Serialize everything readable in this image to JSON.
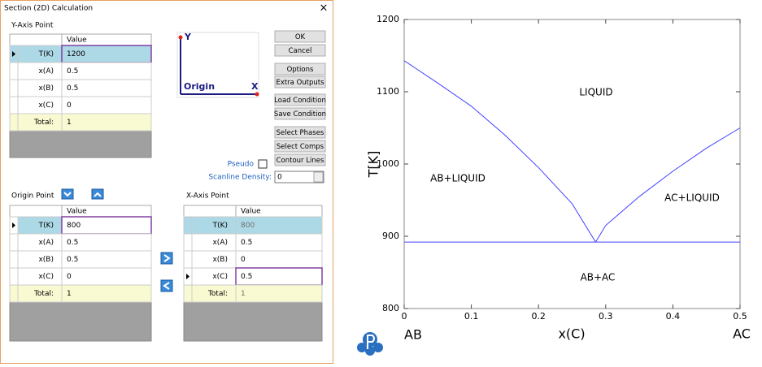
{
  "dialog": {
    "title": "Section (2D) Calculation",
    "close": "×",
    "y_axis_point": {
      "label": "Y-Axis Point",
      "header": "Value",
      "rows": [
        [
          "T(K)",
          "1200"
        ],
        [
          "x(A)",
          "0.5"
        ],
        [
          "x(B)",
          "0.5"
        ],
        [
          "x(C)",
          "0"
        ],
        [
          "Total:",
          "1"
        ]
      ]
    },
    "origin_point": {
      "label": "Origin Point",
      "header": "Value",
      "rows": [
        [
          "T(K)",
          "800"
        ],
        [
          "x(A)",
          "0.5"
        ],
        [
          "x(B)",
          "0.5"
        ],
        [
          "x(C)",
          "0"
        ],
        [
          "Total:",
          "1"
        ]
      ]
    },
    "x_axis_point": {
      "label": "X-Axis Point",
      "header": "Value",
      "rows": [
        [
          "T(K)",
          "800"
        ],
        [
          "x(A)",
          "0.5"
        ],
        [
          "x(B)",
          "0"
        ],
        [
          "x(C)",
          "0.5"
        ],
        [
          "Total:",
          "1"
        ]
      ]
    },
    "diagram": {
      "y": "Y",
      "origin": "Origin",
      "x": "X"
    },
    "buttons": [
      "OK",
      "Cancel",
      "Options",
      "Extra Outputs",
      "Load Condition",
      "Save Condition",
      "Select Phases",
      "Select Comps",
      "Contour Lines"
    ],
    "pseudo": "Pseudo",
    "scanline_label": "Scanline Density:",
    "scanline_value": "0"
  },
  "chart_data": {
    "type": "line",
    "xlabel": "x(C)",
    "ylabel": "T[K]",
    "xlim": [
      0,
      0.5
    ],
    "ylim": [
      800,
      1200
    ],
    "xticks": [
      0,
      0.1,
      0.2,
      0.3,
      0.4,
      0.5
    ],
    "yticks": [
      800,
      900,
      1000,
      1100,
      1200
    ],
    "series": [
      {
        "color": "#4040ff",
        "x": [
          0,
          0.05,
          0.1,
          0.15,
          0.2,
          0.25,
          0.285
        ],
        "values": [
          1143,
          1112,
          1080,
          1040,
          995,
          945,
          892
        ]
      },
      {
        "color": "#4040ff",
        "x": [
          0.285,
          0.3,
          0.35,
          0.4,
          0.45,
          0.5
        ],
        "values": [
          892,
          915,
          955,
          990,
          1022,
          1050
        ]
      },
      {
        "color": "#4040ff",
        "x": [
          0,
          0.5
        ],
        "values": [
          892,
          892
        ]
      }
    ],
    "annotations": [
      "LIQUID",
      "AB+LIQUID",
      "AC+LIQUID",
      "AB+AC"
    ],
    "end_labels": [
      "AB",
      "AC"
    ]
  }
}
